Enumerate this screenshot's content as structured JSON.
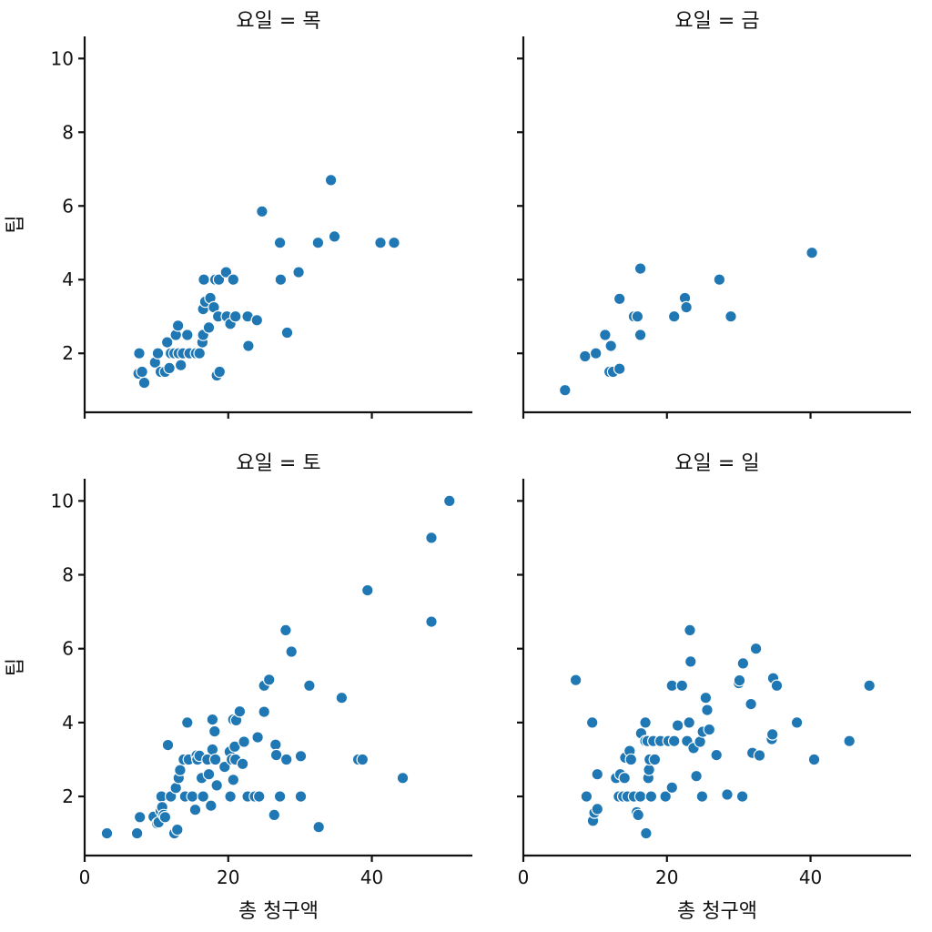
{
  "chart_data": {
    "type": "scatter",
    "xlabel": "총 청구액",
    "ylabel": "팁",
    "xlim": [
      0,
      54
    ],
    "ylim": [
      0.4,
      10.6
    ],
    "x_ticks": [
      0,
      20,
      40
    ],
    "y_ticks": [
      2,
      4,
      6,
      8,
      10
    ],
    "color": "#1f77b4",
    "grid": false,
    "legend": "none",
    "facets": [
      {
        "title": "요일 = 목",
        "points": [
          [
            7.5,
            1.45
          ],
          [
            7.6,
            2.0
          ],
          [
            8.0,
            1.5
          ],
          [
            8.3,
            1.2
          ],
          [
            9.8,
            1.75
          ],
          [
            10.2,
            2.0
          ],
          [
            10.6,
            1.5
          ],
          [
            11.2,
            1.5
          ],
          [
            11.5,
            2.3
          ],
          [
            11.8,
            1.6
          ],
          [
            12.0,
            2.0
          ],
          [
            12.5,
            2.0
          ],
          [
            12.7,
            2.5
          ],
          [
            13.0,
            2.75
          ],
          [
            13.1,
            2.0
          ],
          [
            13.4,
            1.68
          ],
          [
            13.7,
            2.0
          ],
          [
            14.3,
            2.5
          ],
          [
            14.6,
            2.0
          ],
          [
            15.5,
            2.0
          ],
          [
            16.0,
            2.0
          ],
          [
            16.4,
            2.3
          ],
          [
            16.5,
            2.5
          ],
          [
            16.5,
            3.2
          ],
          [
            16.6,
            4.0
          ],
          [
            16.8,
            3.4
          ],
          [
            17.3,
            2.7
          ],
          [
            17.5,
            3.5
          ],
          [
            18.0,
            3.25
          ],
          [
            18.2,
            4.0
          ],
          [
            18.4,
            1.4
          ],
          [
            18.6,
            3.0
          ],
          [
            18.7,
            4.0
          ],
          [
            18.8,
            1.5
          ],
          [
            19.7,
            4.2
          ],
          [
            19.8,
            3.0
          ],
          [
            20.3,
            2.8
          ],
          [
            20.7,
            4.0
          ],
          [
            21.0,
            3.0
          ],
          [
            22.7,
            3.0
          ],
          [
            22.8,
            2.2
          ],
          [
            24.0,
            2.9
          ],
          [
            24.7,
            5.85
          ],
          [
            27.2,
            5.0
          ],
          [
            27.3,
            4.0
          ],
          [
            28.2,
            2.56
          ],
          [
            29.8,
            4.2
          ],
          [
            32.5,
            5.0
          ],
          [
            34.3,
            6.7
          ],
          [
            34.8,
            5.17
          ],
          [
            41.2,
            5.0
          ],
          [
            43.1,
            5.0
          ]
        ]
      },
      {
        "title": "요일 = 금",
        "points": [
          [
            5.8,
            1.0
          ],
          [
            8.6,
            1.92
          ],
          [
            10.1,
            2.0
          ],
          [
            11.4,
            2.5
          ],
          [
            12.0,
            1.5
          ],
          [
            12.2,
            2.2
          ],
          [
            12.5,
            1.5
          ],
          [
            13.4,
            1.58
          ],
          [
            13.4,
            3.48
          ],
          [
            15.4,
            3.0
          ],
          [
            15.9,
            3.0
          ],
          [
            16.3,
            2.5
          ],
          [
            16.3,
            4.3
          ],
          [
            21.0,
            3.0
          ],
          [
            22.5,
            3.5
          ],
          [
            22.7,
            3.25
          ],
          [
            27.3,
            4.0
          ],
          [
            28.9,
            3.0
          ],
          [
            40.2,
            4.73
          ]
        ]
      },
      {
        "title": "요일 = 토",
        "points": [
          [
            3.1,
            1.0
          ],
          [
            7.3,
            1.0
          ],
          [
            7.7,
            1.44
          ],
          [
            9.6,
            1.45
          ],
          [
            10.1,
            1.27
          ],
          [
            10.3,
            1.3
          ],
          [
            10.6,
            1.61
          ],
          [
            10.7,
            2.0
          ],
          [
            10.8,
            1.71
          ],
          [
            11.0,
            1.5
          ],
          [
            11.2,
            1.44
          ],
          [
            11.6,
            3.39
          ],
          [
            12.0,
            2.0
          ],
          [
            12.5,
            1.0
          ],
          [
            12.7,
            2.23
          ],
          [
            12.9,
            1.1
          ],
          [
            13.1,
            2.5
          ],
          [
            13.3,
            2.71
          ],
          [
            13.8,
            3.0
          ],
          [
            14.0,
            2.0
          ],
          [
            14.3,
            4.0
          ],
          [
            14.5,
            3.0
          ],
          [
            15.0,
            2.0
          ],
          [
            15.4,
            1.64
          ],
          [
            15.6,
            3.11
          ],
          [
            15.7,
            3.0
          ],
          [
            16.0,
            3.1
          ],
          [
            16.3,
            2.5
          ],
          [
            16.5,
            2.0
          ],
          [
            17.1,
            3.0
          ],
          [
            17.3,
            2.6
          ],
          [
            17.6,
            1.75
          ],
          [
            17.8,
            3.27
          ],
          [
            17.8,
            4.08
          ],
          [
            18.1,
            3.76
          ],
          [
            18.2,
            3.0
          ],
          [
            18.4,
            2.3
          ],
          [
            19.5,
            2.8
          ],
          [
            20.2,
            3.21
          ],
          [
            20.3,
            2.0
          ],
          [
            20.5,
            3.0
          ],
          [
            20.7,
            4.08
          ],
          [
            20.7,
            2.45
          ],
          [
            20.9,
            3.35
          ],
          [
            21.0,
            3.0
          ],
          [
            21.1,
            4.06
          ],
          [
            21.6,
            4.3
          ],
          [
            22.0,
            2.88
          ],
          [
            22.2,
            3.48
          ],
          [
            22.7,
            2.0
          ],
          [
            23.7,
            2.0
          ],
          [
            24.1,
            3.6
          ],
          [
            24.3,
            2.0
          ],
          [
            25.0,
            5.0
          ],
          [
            25.0,
            4.29
          ],
          [
            25.7,
            5.16
          ],
          [
            26.4,
            1.5
          ],
          [
            26.6,
            3.4
          ],
          [
            26.7,
            3.12
          ],
          [
            27.2,
            2.0
          ],
          [
            28.0,
            6.5
          ],
          [
            28.1,
            3.0
          ],
          [
            28.8,
            5.92
          ],
          [
            30.1,
            2.0
          ],
          [
            30.1,
            3.09
          ],
          [
            31.3,
            5.0
          ],
          [
            32.6,
            1.17
          ],
          [
            35.8,
            4.67
          ],
          [
            38.1,
            3.0
          ],
          [
            38.7,
            3.0
          ],
          [
            39.4,
            7.58
          ],
          [
            44.3,
            2.5
          ],
          [
            48.3,
            6.73
          ],
          [
            48.3,
            9.0
          ],
          [
            50.8,
            10.0
          ]
        ]
      },
      {
        "title": "요일 = 일",
        "points": [
          [
            7.3,
            5.15
          ],
          [
            8.8,
            2.0
          ],
          [
            9.6,
            4.0
          ],
          [
            9.7,
            1.34
          ],
          [
            9.9,
            1.56
          ],
          [
            10.3,
            1.66
          ],
          [
            10.3,
            2.6
          ],
          [
            12.9,
            2.5
          ],
          [
            13.3,
            2.0
          ],
          [
            13.5,
            2.6
          ],
          [
            13.9,
            2.0
          ],
          [
            14.1,
            2.5
          ],
          [
            14.2,
            3.05
          ],
          [
            14.5,
            2.0
          ],
          [
            14.8,
            3.23
          ],
          [
            15.0,
            3.0
          ],
          [
            15.4,
            2.0
          ],
          [
            15.8,
            1.57
          ],
          [
            16.0,
            1.5
          ],
          [
            16.3,
            2.0
          ],
          [
            16.4,
            3.71
          ],
          [
            17.0,
            4.0
          ],
          [
            17.0,
            3.5
          ],
          [
            17.1,
            1.0
          ],
          [
            17.3,
            3.5
          ],
          [
            17.4,
            2.5
          ],
          [
            17.5,
            2.72
          ],
          [
            17.6,
            3.0
          ],
          [
            17.8,
            2.0
          ],
          [
            18.1,
            3.5
          ],
          [
            18.3,
            3.0
          ],
          [
            19.1,
            3.5
          ],
          [
            19.8,
            2.0
          ],
          [
            20.2,
            3.5
          ],
          [
            20.7,
            2.24
          ],
          [
            20.7,
            5.0
          ],
          [
            21.0,
            3.5
          ],
          [
            21.5,
            3.92
          ],
          [
            22.1,
            5.0
          ],
          [
            22.8,
            3.5
          ],
          [
            23.1,
            4.0
          ],
          [
            23.3,
            5.65
          ],
          [
            23.2,
            6.5
          ],
          [
            23.7,
            3.31
          ],
          [
            24.1,
            2.55
          ],
          [
            24.6,
            3.48
          ],
          [
            24.9,
            2.0
          ],
          [
            25.0,
            3.75
          ],
          [
            25.4,
            4.67
          ],
          [
            25.6,
            4.34
          ],
          [
            25.9,
            3.81
          ],
          [
            26.9,
            3.12
          ],
          [
            28.4,
            2.05
          ],
          [
            30.0,
            5.07
          ],
          [
            30.1,
            5.14
          ],
          [
            30.5,
            2.0
          ],
          [
            30.6,
            5.6
          ],
          [
            31.7,
            4.5
          ],
          [
            31.9,
            3.18
          ],
          [
            32.4,
            6.0
          ],
          [
            32.9,
            3.11
          ],
          [
            34.6,
            3.55
          ],
          [
            34.7,
            3.68
          ],
          [
            34.8,
            5.2
          ],
          [
            35.3,
            5.0
          ],
          [
            38.1,
            4.0
          ],
          [
            40.5,
            3.0
          ],
          [
            45.4,
            3.5
          ],
          [
            48.2,
            5.0
          ]
        ]
      }
    ]
  }
}
